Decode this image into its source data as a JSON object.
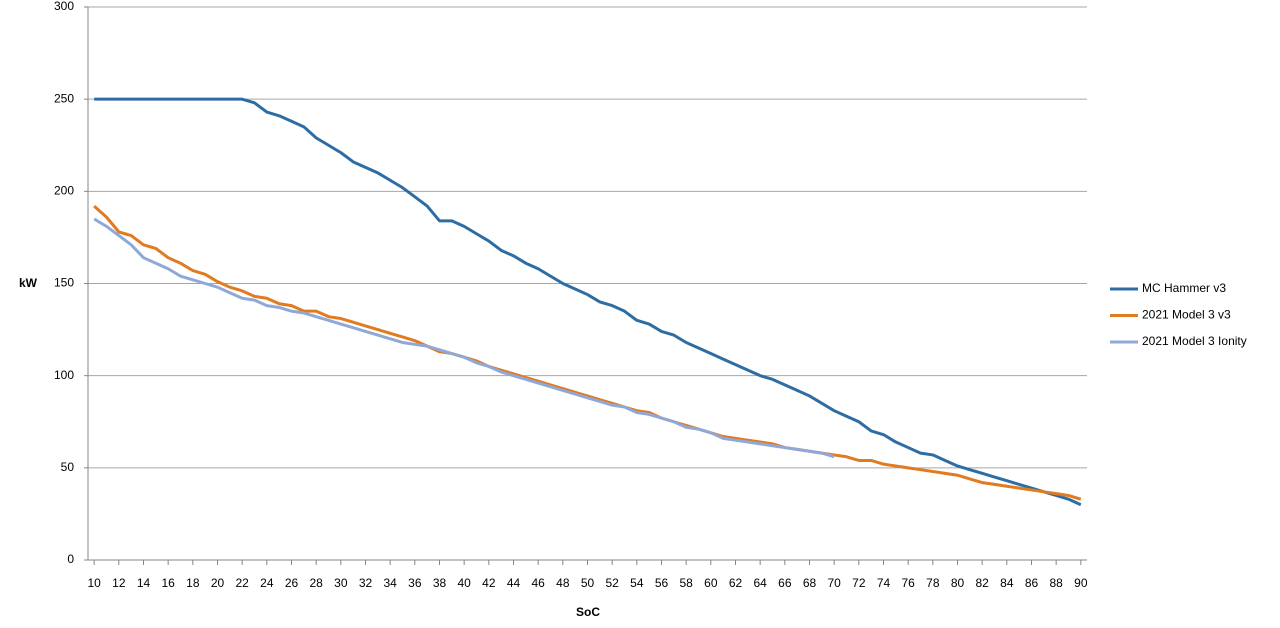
{
  "chart_data": {
    "type": "line",
    "x_label": "SoC",
    "y_label": "kW",
    "x": [
      10,
      11,
      12,
      13,
      14,
      15,
      16,
      17,
      18,
      19,
      20,
      21,
      22,
      23,
      24,
      25,
      26,
      27,
      28,
      29,
      30,
      31,
      32,
      33,
      34,
      35,
      36,
      37,
      38,
      39,
      40,
      41,
      42,
      43,
      44,
      45,
      46,
      47,
      48,
      49,
      50,
      51,
      52,
      53,
      54,
      55,
      56,
      57,
      58,
      59,
      60,
      61,
      62,
      63,
      64,
      65,
      66,
      67,
      68,
      69,
      70,
      71,
      72,
      73,
      74,
      75,
      76,
      77,
      78,
      79,
      80,
      81,
      82,
      83,
      84,
      85,
      86,
      87,
      88,
      89,
      90
    ],
    "series": [
      {
        "name": "MC Hammer  v3",
        "color": "#2e6da4",
        "values": [
          250,
          250,
          250,
          250,
          250,
          250,
          250,
          250,
          250,
          250,
          250,
          250,
          250,
          248,
          243,
          241,
          238,
          235,
          229,
          225,
          221,
          216,
          213,
          210,
          206,
          202,
          197,
          192,
          184,
          184,
          181,
          177,
          173,
          168,
          165,
          161,
          158,
          154,
          150,
          147,
          144,
          140,
          138,
          135,
          130,
          128,
          124,
          122,
          118,
          115,
          112,
          109,
          106,
          103,
          100,
          98,
          95,
          92,
          89,
          85,
          81,
          78,
          75,
          70,
          68,
          64,
          61,
          58,
          57,
          54,
          51,
          49,
          47,
          45,
          43,
          41,
          39,
          37,
          35,
          33,
          30
        ]
      },
      {
        "name": "2021 Model 3 v3",
        "color": "#e07b20",
        "values": [
          192,
          186,
          178,
          176,
          171,
          169,
          164,
          161,
          157,
          155,
          151,
          148,
          146,
          143,
          142,
          139,
          138,
          135,
          135,
          132,
          131,
          129,
          127,
          125,
          123,
          121,
          119,
          116,
          113,
          112,
          110,
          108,
          105,
          103,
          101,
          99,
          97,
          95,
          93,
          91,
          89,
          87,
          85,
          83,
          81,
          80,
          77,
          75,
          73,
          71,
          69,
          67,
          66,
          65,
          64,
          63,
          61,
          60,
          59,
          58,
          57,
          56,
          54,
          54,
          52,
          51,
          50,
          49,
          48,
          47,
          46,
          44,
          42,
          41,
          40,
          39,
          38,
          37,
          36,
          35,
          33
        ]
      },
      {
        "name": "2021 Model 3 Ionity",
        "color": "#8fa8d8",
        "values": [
          185,
          181,
          176,
          171,
          164,
          161,
          158,
          154,
          152,
          150,
          148,
          145,
          142,
          141,
          138,
          137,
          135,
          134,
          132,
          130,
          128,
          126,
          124,
          122,
          120,
          118,
          117,
          116,
          114,
          112,
          110,
          107,
          105,
          102,
          100,
          98,
          96,
          94,
          92,
          90,
          88,
          86,
          84,
          83,
          80,
          79,
          77,
          75,
          72,
          71,
          69,
          66,
          65,
          64,
          63,
          62,
          61,
          60,
          59,
          58,
          56,
          null,
          null,
          null,
          null,
          null,
          null,
          null,
          null,
          null,
          null,
          null,
          null,
          null,
          null,
          null,
          null,
          null,
          null,
          null,
          null
        ]
      }
    ],
    "xlim": [
      9.5,
      90.5
    ],
    "xticks": [
      10,
      12,
      14,
      16,
      18,
      20,
      22,
      24,
      26,
      28,
      30,
      32,
      34,
      36,
      38,
      40,
      42,
      44,
      46,
      48,
      50,
      52,
      54,
      56,
      58,
      60,
      62,
      64,
      66,
      68,
      70,
      72,
      74,
      76,
      78,
      80,
      82,
      84,
      86,
      88,
      90
    ],
    "ylim": [
      0,
      300
    ],
    "yticks": [
      0,
      50,
      100,
      150,
      200,
      250,
      300
    ],
    "grid": true,
    "legend": "right"
  }
}
